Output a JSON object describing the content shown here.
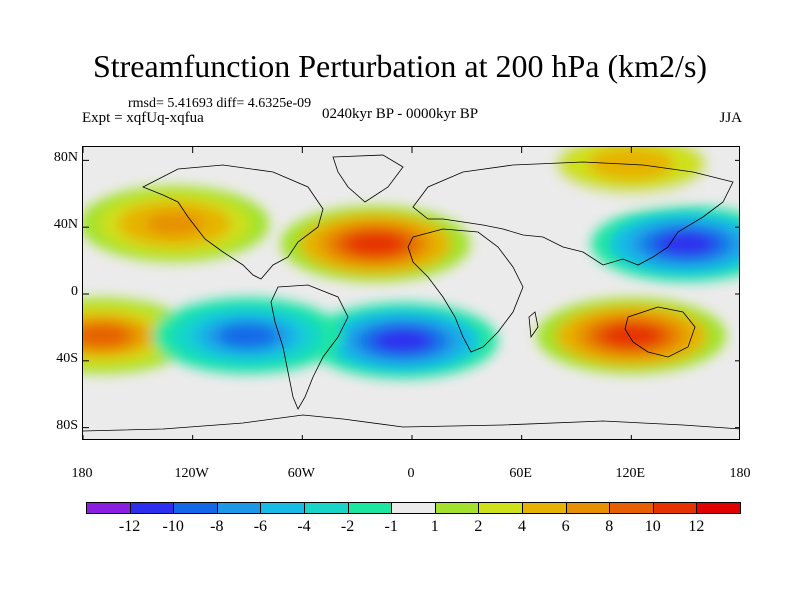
{
  "header": {
    "title": "Streamfunction Perturbation at 200 hPa (km2/s)",
    "stats": "rmsd= 5.41693  diff= 4.6325e-09",
    "experiment": "Expt = xqfUq-xqfua",
    "period": "0240kyr BP - 0000kyr BP",
    "season": "JJA"
  },
  "map": {
    "projection": "cylindrical equidistant",
    "lon_range": [
      -180,
      180
    ],
    "lat_range": [
      -88,
      88
    ],
    "lat_labels": [
      "80N",
      "40N",
      "0",
      "40S",
      "80S"
    ],
    "lon_labels": [
      "180",
      "120W",
      "60W",
      "0",
      "60E",
      "120E",
      "180"
    ],
    "features": [
      {
        "name": "ridge North Atlantic / North Africa",
        "lon": -20,
        "lat": 30,
        "value": 12
      },
      {
        "name": "trough western Pacific",
        "lon": 150,
        "lat": 30,
        "value": -12
      },
      {
        "name": "ridge southern Indian Ocean / Australia",
        "lon": 120,
        "lat": -25,
        "value": 12
      },
      {
        "name": "ridge South Pacific",
        "lon": -170,
        "lat": -25,
        "value": 10
      },
      {
        "name": "trough South Atlantic",
        "lon": -5,
        "lat": -28,
        "value": -12
      },
      {
        "name": "trough southeast Pacific",
        "lon": -90,
        "lat": -25,
        "value": -10
      },
      {
        "name": "ridge North Pacific",
        "lon": -130,
        "lat": 42,
        "value": 8
      },
      {
        "name": "ridge Arctic",
        "lon": 120,
        "lat": 78,
        "value": 6
      }
    ]
  },
  "colorbar": {
    "colors": [
      "#8a1fe0",
      "#2e2eee",
      "#1468e8",
      "#1d97e6",
      "#17bce6",
      "#18d5c8",
      "#1de6a0",
      "#ebebeb",
      "#a2e22c",
      "#cfe01c",
      "#e6b400",
      "#e69000",
      "#e66000",
      "#e63200",
      "#e00000"
    ],
    "labels": [
      "-12",
      "-10",
      "-8",
      "-6",
      "-4",
      "-2",
      "-1",
      "1",
      "2",
      "4",
      "6",
      "8",
      "10",
      "12"
    ]
  }
}
